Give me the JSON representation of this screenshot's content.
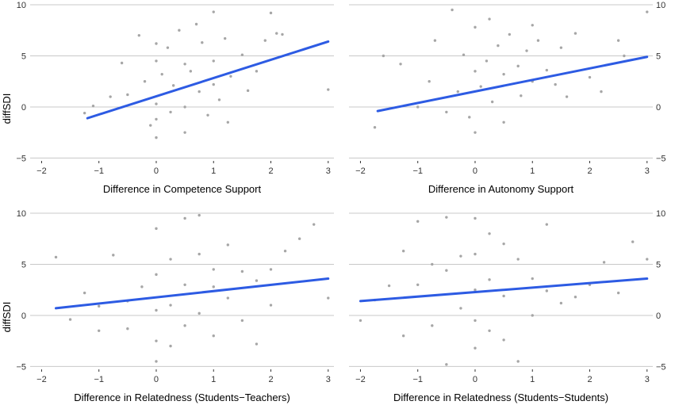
{
  "figure": {
    "y_label": "diffSDI",
    "colors": {
      "points": "#a6a6a6",
      "fit": "#2d5be3",
      "grid": "#c8c8c8"
    }
  },
  "chart_data": [
    {
      "type": "scatter",
      "title": "",
      "xlabel": "Difference in Competence Support",
      "ylabel": "diffSDI",
      "xlim": [
        -2.2,
        3.1
      ],
      "ylim": [
        -5.2,
        10
      ],
      "xticks": [
        "−2",
        "−1",
        "0",
        "1",
        "2",
        "3"
      ],
      "yticks": [
        "−5",
        "0",
        "5",
        "10"
      ],
      "fit": {
        "x": [
          -1.2,
          3.0
        ],
        "y": [
          -1.1,
          6.4
        ]
      },
      "x": [
        -1.25,
        -1.1,
        -0.8,
        -0.6,
        -0.5,
        -0.3,
        -0.2,
        -0.1,
        0,
        0,
        0,
        0,
        0,
        0.1,
        0.2,
        0.25,
        0.3,
        0.4,
        0.5,
        0.5,
        0.5,
        0.6,
        0.7,
        0.75,
        0.8,
        0.9,
        1,
        1,
        1,
        1.1,
        1.2,
        1.25,
        1.3,
        1.5,
        1.6,
        1.75,
        1.9,
        2,
        2.1,
        2.2,
        3
      ],
      "y": [
        -0.6,
        0.1,
        1.0,
        4.3,
        1.2,
        7.0,
        2.5,
        -1.8,
        6.2,
        4.5,
        0.3,
        -1.2,
        -3.0,
        3.2,
        5.8,
        -0.5,
        2.1,
        7.5,
        0.0,
        4.2,
        -2.5,
        3.5,
        8.1,
        1.5,
        6.3,
        -0.8,
        9.3,
        4.5,
        2.2,
        0.7,
        6.7,
        -1.5,
        3.0,
        5.1,
        1.6,
        3.5,
        6.5,
        9.2,
        7.2,
        7.1,
        1.7
      ]
    },
    {
      "type": "scatter",
      "title": "",
      "xlabel": "Difference in Autonomy Support",
      "ylabel": "diffSDI",
      "xlim": [
        -2.2,
        3.1
      ],
      "ylim": [
        -5.2,
        10
      ],
      "xticks": [
        "−2",
        "−1",
        "0",
        "1",
        "2",
        "3"
      ],
      "yticks": [
        "−5",
        "0",
        "5",
        "10"
      ],
      "fit": {
        "x": [
          -1.7,
          3.0
        ],
        "y": [
          -0.4,
          4.9
        ]
      },
      "x": [
        -1.75,
        -1.6,
        -1.3,
        -1.0,
        -0.8,
        -0.7,
        -0.5,
        -0.4,
        -0.3,
        -0.2,
        -0.1,
        0,
        0,
        0,
        0.1,
        0.2,
        0.25,
        0.3,
        0.4,
        0.5,
        0.5,
        0.6,
        0.75,
        0.8,
        0.9,
        1,
        1,
        1.1,
        1.25,
        1.4,
        1.5,
        1.6,
        1.75,
        2,
        2.2,
        2.5,
        2.6,
        3
      ],
      "y": [
        -2.0,
        5.0,
        4.2,
        0.0,
        2.5,
        6.5,
        -0.5,
        9.5,
        1.5,
        5.1,
        -1.0,
        3.5,
        7.8,
        -2.5,
        2.0,
        4.5,
        8.6,
        0.5,
        6.0,
        3.2,
        -1.5,
        7.1,
        4.0,
        1.1,
        5.5,
        2.5,
        8.0,
        6.5,
        3.6,
        2.2,
        5.8,
        1.0,
        7.2,
        2.9,
        1.5,
        6.5,
        5.0,
        9.3
      ]
    },
    {
      "type": "scatter",
      "title": "",
      "xlabel": "Difference in Relatedness (Students−Teachers)",
      "ylabel": "diffSDI",
      "xlim": [
        -2.2,
        3.1
      ],
      "ylim": [
        -5.2,
        10
      ],
      "xticks": [
        "−2",
        "−1",
        "0",
        "1",
        "2",
        "3"
      ],
      "yticks": [
        "−5",
        "0",
        "5",
        "10"
      ],
      "fit": {
        "x": [
          -1.75,
          3.0
        ],
        "y": [
          0.7,
          3.6
        ]
      },
      "x": [
        -1.75,
        -1.5,
        -1.25,
        -1.0,
        -1.0,
        -0.75,
        -0.5,
        -0.5,
        -0.25,
        0,
        0,
        0,
        0,
        0,
        0.25,
        0.25,
        0.25,
        0.5,
        0.5,
        0.5,
        0.75,
        0.75,
        0.75,
        1,
        1,
        1,
        1.25,
        1.25,
        1.5,
        1.5,
        1.75,
        1.75,
        2,
        2,
        2.25,
        2.5,
        2.75,
        3
      ],
      "y": [
        5.7,
        -0.4,
        2.2,
        -1.5,
        0.9,
        5.9,
        1.4,
        -1.3,
        2.8,
        8.5,
        4.0,
        0.5,
        -2.5,
        -4.5,
        5.5,
        1.0,
        -3.0,
        9.5,
        3.0,
        -1.0,
        9.8,
        6.0,
        0.2,
        2.8,
        4.5,
        -2.0,
        6.9,
        1.7,
        4.3,
        -0.5,
        3.4,
        -2.8,
        4.5,
        1.0,
        6.3,
        7.5,
        8.9,
        1.7
      ]
    },
    {
      "type": "scatter",
      "title": "",
      "xlabel": "Difference in Relatedness (Students−Students)",
      "ylabel": "diffSDI",
      "xlim": [
        -2.2,
        3.1
      ],
      "ylim": [
        -5.2,
        10
      ],
      "xticks": [
        "−2",
        "−1",
        "0",
        "1",
        "2",
        "3"
      ],
      "yticks": [
        "−5",
        "0",
        "5",
        "10"
      ],
      "fit": {
        "x": [
          -2.0,
          3.0
        ],
        "y": [
          1.4,
          3.6
        ]
      },
      "x": [
        -2.0,
        -1.75,
        -1.5,
        -1.25,
        -1.25,
        -1.0,
        -1.0,
        -0.75,
        -0.75,
        -0.5,
        -0.5,
        -0.5,
        -0.25,
        -0.25,
        0,
        0,
        0,
        0,
        0,
        0.25,
        0.25,
        0.25,
        0.5,
        0.5,
        0.5,
        0.75,
        0.75,
        1,
        1,
        1.25,
        1.25,
        1.5,
        1.75,
        2,
        2.25,
        2.5,
        2.75,
        3
      ],
      "y": [
        -0.5,
        1.5,
        2.9,
        6.3,
        -2.0,
        9.2,
        3.0,
        5.0,
        -1.0,
        9.6,
        4.4,
        -4.8,
        5.8,
        0.7,
        9.5,
        6.0,
        2.5,
        -0.5,
        -3.2,
        8.0,
        3.5,
        -1.5,
        7.0,
        1.9,
        -2.4,
        5.5,
        -4.5,
        3.6,
        0.0,
        8.9,
        2.4,
        1.2,
        1.8,
        3.0,
        5.2,
        2.2,
        7.2,
        5.5
      ]
    }
  ]
}
